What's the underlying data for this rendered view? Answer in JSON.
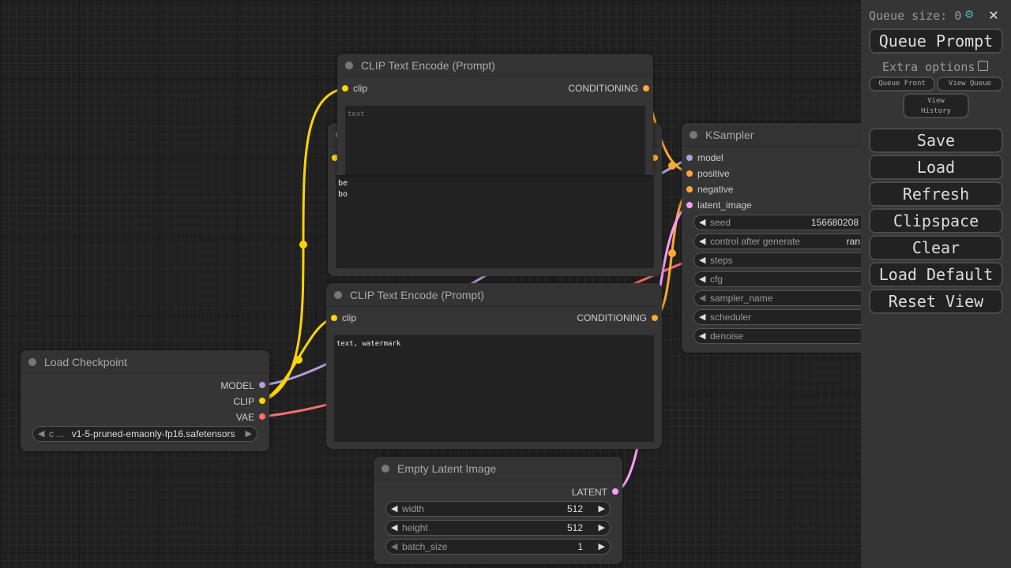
{
  "colors": {
    "clip": "#ffd500",
    "model": "#b39ddb",
    "vae": "#ff6e6e",
    "conditioning": "#ffa931",
    "latent": "#ff9cf9"
  },
  "nodes": {
    "clip_top": {
      "title": "CLIP Text Encode (Prompt)",
      "input": "clip",
      "output": "CONDITIONING",
      "placeholder": "text"
    },
    "clip_hidden": {
      "text_line1": "be",
      "text_line2": "bo"
    },
    "clip_bottom": {
      "title": "CLIP Text Encode (Prompt)",
      "input": "clip",
      "output": "CONDITIONING",
      "text": "text, watermark"
    },
    "ksampler": {
      "title": "KSampler",
      "inputs": [
        "model",
        "positive",
        "negative",
        "latent_image"
      ],
      "widgets": [
        {
          "label": "seed",
          "value": "156680208"
        },
        {
          "label": "control after generate",
          "value": "ran"
        },
        {
          "label": "steps",
          "value": ""
        },
        {
          "label": "cfg",
          "value": ""
        },
        {
          "label": "sampler_name",
          "value": ""
        },
        {
          "label": "scheduler",
          "value": ""
        },
        {
          "label": "denoise",
          "value": ""
        }
      ]
    },
    "checkpoint": {
      "title": "Load Checkpoint",
      "outputs": [
        "MODEL",
        "CLIP",
        "VAE"
      ],
      "widget_label": "c ...",
      "widget_value": "v1-5-pruned-emaonly-fp16.safetensors"
    },
    "latent": {
      "title": "Empty Latent Image",
      "output": "LATENT",
      "widgets": [
        {
          "label": "width",
          "value": "512"
        },
        {
          "label": "height",
          "value": "512"
        },
        {
          "label": "batch_size",
          "value": "1"
        }
      ]
    }
  },
  "panel": {
    "queue_size": "Queue size: 0",
    "queue_prompt": "Queue Prompt",
    "extra_options": "Extra options",
    "queue_front": "Queue Front",
    "view_queue": "View Queue",
    "view_history_1": "View",
    "view_history_2": "History",
    "buttons": [
      "Save",
      "Load",
      "Refresh",
      "Clipspace",
      "Clear",
      "Load Default",
      "Reset View"
    ]
  }
}
